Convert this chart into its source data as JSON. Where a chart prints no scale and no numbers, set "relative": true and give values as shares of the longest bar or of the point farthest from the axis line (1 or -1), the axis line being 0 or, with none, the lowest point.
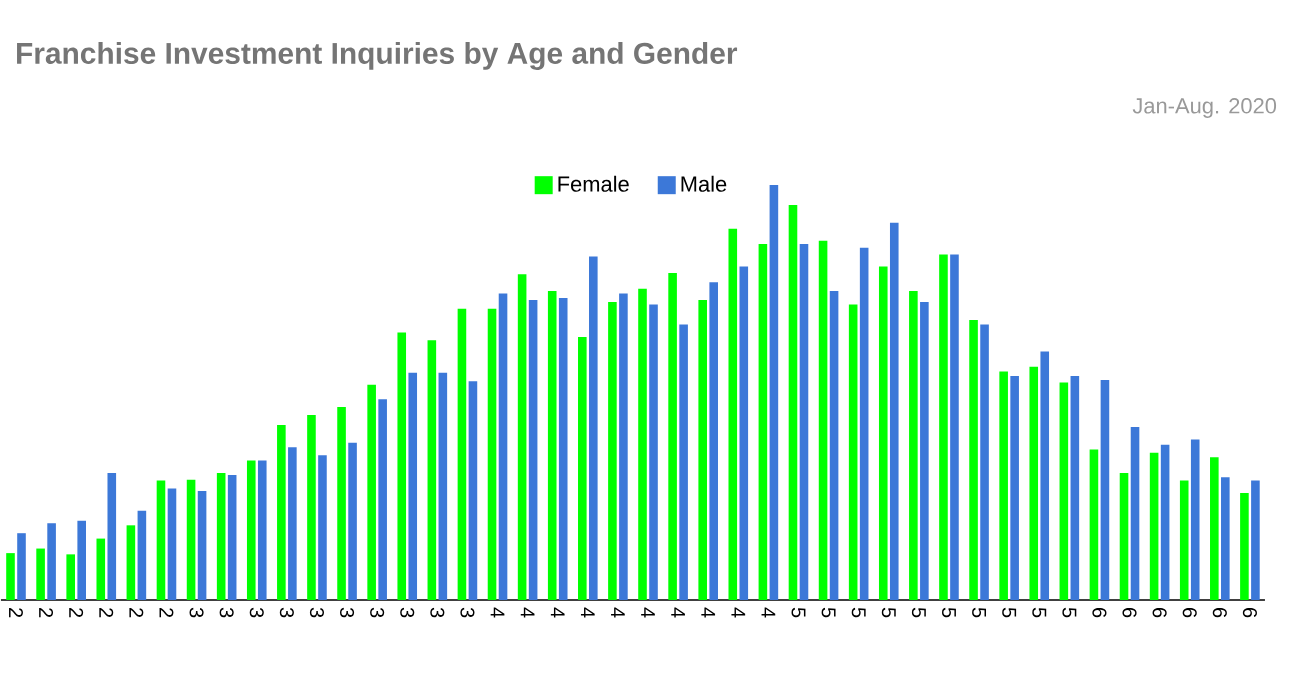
{
  "chart_data": {
    "type": "bar",
    "title": "Franchise Investment Inquiries by Age and Gender",
    "annotations": [
      "Jan-Aug. 2020"
    ],
    "categories": [
      "2",
      "2",
      "2",
      "2",
      "2",
      "2",
      "3",
      "3",
      "3",
      "3",
      "3",
      "3",
      "3",
      "3",
      "3",
      "3",
      "4",
      "4",
      "4",
      "4",
      "4",
      "4",
      "4",
      "4",
      "4",
      "4",
      "5",
      "5",
      "5",
      "5",
      "5",
      "5",
      "5",
      "5",
      "5",
      "5",
      "6",
      "6",
      "6",
      "6",
      "6",
      "6"
    ],
    "relative": true,
    "legend": "top",
    "series": [
      {
        "name": "Female",
        "color": "#00ff00",
        "values": [
          0.113,
          0.124,
          0.11,
          0.148,
          0.18,
          0.288,
          0.29,
          0.306,
          0.336,
          0.422,
          0.446,
          0.465,
          0.519,
          0.645,
          0.626,
          0.702,
          0.702,
          0.785,
          0.745,
          0.634,
          0.718,
          0.75,
          0.788,
          0.723,
          0.895,
          0.858,
          0.952,
          0.866,
          0.712,
          0.804,
          0.745,
          0.833,
          0.675,
          0.551,
          0.562,
          0.524,
          0.363,
          0.306,
          0.355,
          0.288,
          0.344,
          0.258
        ]
      },
      {
        "name": "Male",
        "color": "#3c78d8",
        "values": [
          0.161,
          0.185,
          0.191,
          0.306,
          0.215,
          0.269,
          0.263,
          0.301,
          0.336,
          0.368,
          0.349,
          0.379,
          0.484,
          0.548,
          0.548,
          0.527,
          0.739,
          0.723,
          0.728,
          0.828,
          0.739,
          0.712,
          0.664,
          0.766,
          0.804,
          1,
          0.858,
          0.745,
          0.849,
          0.909,
          0.718,
          0.833,
          0.664,
          0.54,
          0.599,
          0.54,
          0.53,
          0.417,
          0.374,
          0.387,
          0.296,
          0.288
        ]
      }
    ]
  }
}
